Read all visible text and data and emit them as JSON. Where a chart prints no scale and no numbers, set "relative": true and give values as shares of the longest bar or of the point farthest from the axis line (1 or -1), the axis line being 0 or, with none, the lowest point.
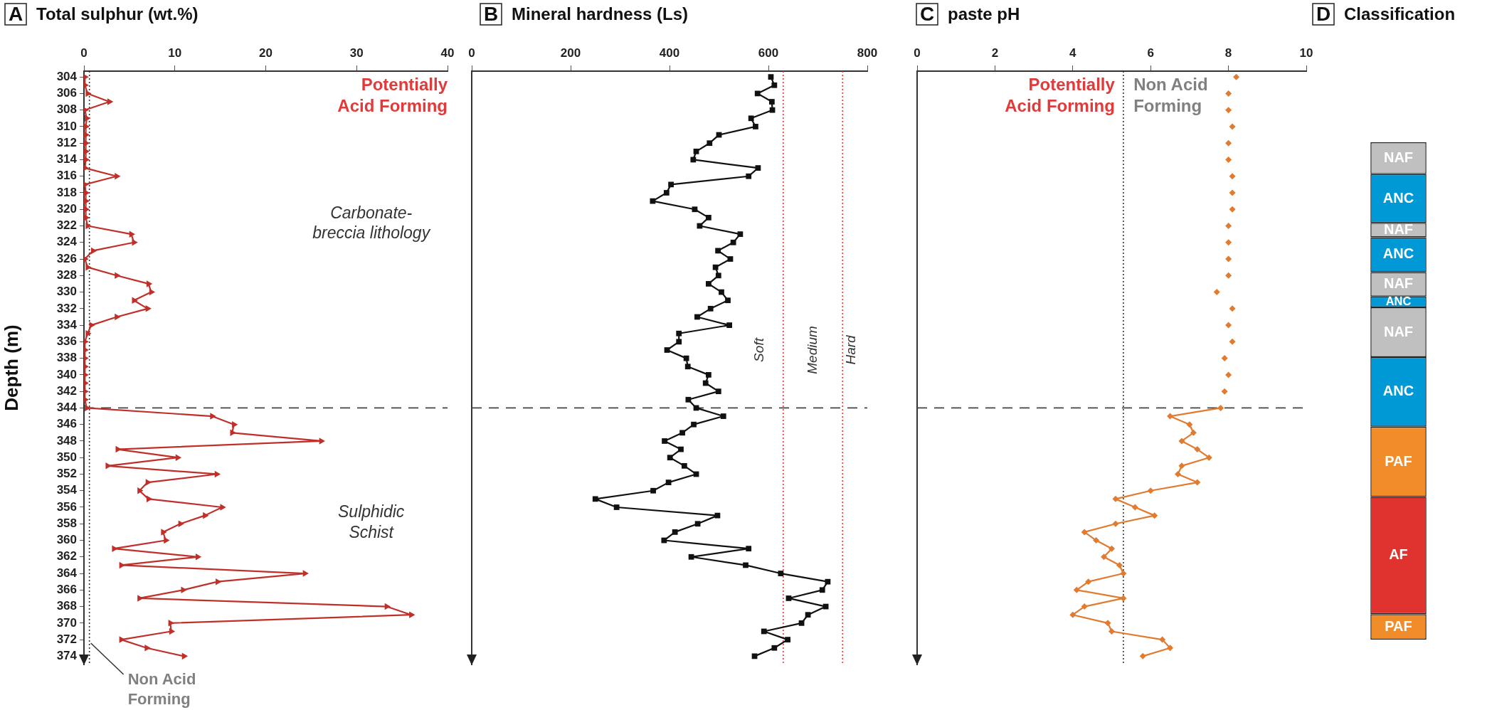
{
  "chart_data": [
    {
      "type": "line",
      "title": "A",
      "xlabel": "Total sulphur (wt.%)",
      "ylabel": "Depth (m)",
      "xlim": [
        0,
        40
      ],
      "xticks": [
        0,
        10,
        20,
        30,
        40
      ],
      "ylim": [
        375,
        303.3
      ],
      "yticks": [
        304,
        306,
        308,
        310,
        312,
        314,
        316,
        318,
        320,
        322,
        324,
        326,
        328,
        330,
        332,
        334,
        336,
        338,
        340,
        342,
        344,
        346,
        348,
        350,
        352,
        354,
        356,
        358,
        360,
        362,
        364,
        366,
        368,
        370,
        372,
        374
      ],
      "marker": "triangle",
      "series": [
        {
          "color": "#c0302a",
          "x": [
            0.1,
            0.1,
            0.4,
            2.8,
            0.1,
            0.3,
            0.2,
            0.2,
            0.2,
            0.2,
            0.2,
            0.1,
            3.6,
            0.1,
            0.2,
            0.2,
            0.2,
            0.2,
            0.4,
            5.2,
            5.5,
            1.0,
            0.1,
            0.4,
            3.6,
            7.1,
            7.4,
            5.5,
            7.0,
            3.6,
            0.8,
            0.4,
            0.1,
            0.1,
            0.1,
            0.1,
            0.1,
            0.1,
            0.1,
            0.1,
            0.3,
            14.1,
            16.5,
            16.3,
            26.1,
            3.7,
            10.3,
            2.6,
            14.6,
            7.0,
            6.1,
            7.1,
            15.2,
            13.3,
            10.6,
            8.7,
            9.0,
            3.3,
            12.5,
            4.1,
            24.3,
            14.7,
            10.9,
            6.1,
            33.3,
            36.0,
            9.5,
            9.6,
            4.1,
            6.9,
            11.0
          ],
          "values": [
            304,
            305,
            306,
            307,
            308,
            309,
            310,
            311,
            312,
            313,
            314,
            315,
            316,
            317,
            318,
            319,
            320,
            321,
            322,
            323,
            324,
            325,
            326,
            327,
            328,
            329,
            330,
            331,
            332,
            333,
            334,
            335,
            336,
            337,
            338,
            339,
            340,
            341,
            342,
            343,
            344,
            345,
            346,
            347,
            348,
            349,
            350,
            351,
            352,
            353,
            354,
            355,
            356,
            357,
            358,
            359,
            360,
            361,
            362,
            363,
            364,
            365,
            366,
            367,
            368,
            369,
            370,
            371,
            372,
            373,
            374
          ]
        }
      ],
      "ref_lines": [
        {
          "axis": "x",
          "value": 0.6,
          "label": "Non Acid Forming",
          "color": "#333333",
          "line_style": "dotted"
        },
        {
          "axis": "y",
          "value": 344,
          "color": "#444444",
          "line_style": "dashed"
        }
      ],
      "annotations": [
        "Potentially Acid Forming",
        "Carbonate-breccia lithology",
        "Sulphidic Schist"
      ]
    },
    {
      "type": "line",
      "title": "B",
      "xlabel": "Mineral hardness (Ls)",
      "xlim": [
        0,
        800
      ],
      "xticks": [
        0,
        200,
        400,
        600,
        800
      ],
      "ylim": [
        375,
        303.3
      ],
      "tick_labels": "x",
      "marker": "square",
      "series": [
        {
          "color": "#111111",
          "x": [
            605,
            612,
            578,
            607,
            608,
            565,
            574,
            500,
            481,
            454,
            448,
            579,
            560,
            403,
            394,
            366,
            451,
            479,
            461,
            543,
            529,
            498,
            523,
            493,
            499,
            479,
            505,
            518,
            483,
            456,
            521,
            419,
            419,
            395,
            434,
            437,
            479,
            473,
            499,
            438,
            454,
            509,
            449,
            426,
            390,
            423,
            401,
            430,
            454,
            398,
            367,
            250,
            293,
            497,
            457,
            411,
            389,
            560,
            444,
            554,
            625,
            720,
            709,
            641,
            716,
            680,
            667,
            591,
            639,
            612,
            572
          ],
          "values": [
            304,
            305,
            306,
            307,
            308,
            309,
            310,
            311,
            312,
            313,
            314,
            315,
            316,
            317,
            318,
            319,
            320,
            321,
            322,
            323,
            324,
            325,
            326,
            327,
            328,
            329,
            330,
            331,
            332,
            333,
            334,
            335,
            336,
            337,
            338,
            339,
            340,
            341,
            342,
            343,
            344,
            345,
            346,
            347,
            348,
            349,
            350,
            351,
            352,
            353,
            354,
            355,
            356,
            357,
            358,
            359,
            360,
            361,
            362,
            363,
            364,
            365,
            366,
            367,
            368,
            369,
            370,
            371,
            372,
            373,
            374
          ]
        }
      ],
      "ref_lines": [
        {
          "axis": "y",
          "value": 344,
          "color": "#444444",
          "line_style": "dashed"
        },
        {
          "axis": "x",
          "value": 630,
          "color": "#e03a3a",
          "line_style": "dotted"
        },
        {
          "axis": "x",
          "value": 750,
          "color": "#e03a3a",
          "line_style": "dotted"
        }
      ],
      "annotations": [
        "Soft",
        "Medium",
        "Hard"
      ]
    },
    {
      "type": "line",
      "title": "C",
      "xlabel": "paste pH",
      "xlim": [
        0,
        10
      ],
      "xticks": [
        0,
        2,
        4,
        6,
        8,
        10
      ],
      "ylim": [
        375,
        303.3
      ],
      "tick_labels": "x",
      "marker": "diamond",
      "series": [
        {
          "type": "scatter",
          "color": "#e07b30",
          "x": [
            8.2,
            8.0,
            8.0,
            8.1,
            8.0,
            8.0,
            8.1,
            8.1,
            8.1,
            8.0,
            8.0,
            8.0,
            8.0,
            7.7,
            8.1,
            8.0,
            8.1,
            7.9,
            8.0,
            7.9
          ],
          "values": [
            304,
            306,
            308,
            310,
            312,
            314,
            316,
            318,
            320,
            322,
            324,
            326,
            328,
            330,
            332,
            334,
            336,
            338,
            340,
            342
          ]
        },
        {
          "type": "line",
          "color": "#e07b30",
          "x": [
            7.8,
            6.5,
            7.0,
            7.1,
            6.8,
            7.2,
            7.5,
            6.8,
            6.7,
            7.2,
            6.0,
            5.1,
            5.6,
            6.1,
            5.1,
            4.3,
            4.6,
            5.0,
            4.8,
            5.2,
            5.3,
            4.4,
            4.1,
            5.3,
            4.3,
            4.0,
            4.9,
            5.0,
            6.3,
            6.5,
            5.8
          ],
          "values": [
            344,
            345,
            346,
            347,
            348,
            349,
            350,
            351,
            352,
            353,
            354,
            355,
            356,
            357,
            358,
            359,
            360,
            361,
            362,
            363,
            364,
            365,
            366,
            367,
            368,
            369,
            370,
            371,
            372,
            373,
            374
          ]
        }
      ],
      "ref_lines": [
        {
          "axis": "x",
          "value": 5.3,
          "color": "#333333",
          "line_style": "dotted"
        },
        {
          "axis": "y",
          "value": 344,
          "color": "#444444",
          "line_style": "dashed"
        }
      ],
      "annotations": [
        "Potentially Acid Forming",
        "Non Acid Forming"
      ]
    },
    {
      "type": "bar",
      "title": "D",
      "xlabel": "Classification",
      "categories": [
        null
      ],
      "stacked": true,
      "relative": true,
      "tick_labels": false,
      "series": [
        {
          "name": "PAF",
          "color": "#f08c2a",
          "values": [
            0.051
          ]
        },
        {
          "name": "AF",
          "color": "#e0322e",
          "values": [
            0.236
          ]
        },
        {
          "name": "PAF",
          "color": "#f08c2a",
          "values": [
            0.141
          ]
        },
        {
          "name": "ANC",
          "color": "#0099d6",
          "values": [
            0.14
          ]
        },
        {
          "name": "NAF",
          "color": "#c0c0c0",
          "values": [
            0.1
          ]
        },
        {
          "name": "ANC",
          "color": "#0099d6",
          "values": [
            0.022
          ]
        },
        {
          "name": "NAF",
          "color": "#c0c0c0",
          "values": [
            0.049
          ]
        },
        {
          "name": "ANC",
          "color": "#0099d6",
          "values": [
            0.07
          ]
        },
        {
          "name": "NAF",
          "color": "#c0c0c0",
          "values": [
            0.029
          ]
        },
        {
          "name": "ANC",
          "color": "#0099d6",
          "values": [
            0.098
          ]
        },
        {
          "name": "NAF",
          "color": "#c0c0c0",
          "values": [
            0.064
          ]
        }
      ]
    }
  ]
}
